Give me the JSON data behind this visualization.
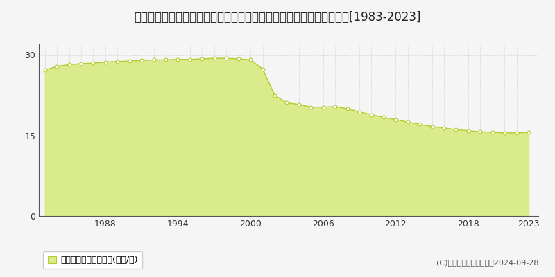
{
  "title": "新潟県上越市西城町３丁目字東二ノ辻１３番７　基準地価　地価推移[1983-2023]",
  "years": [
    1983,
    1984,
    1985,
    1986,
    1987,
    1988,
    1989,
    1990,
    1991,
    1992,
    1993,
    1994,
    1995,
    1996,
    1997,
    1998,
    1999,
    2000,
    2001,
    2002,
    2003,
    2004,
    2005,
    2006,
    2007,
    2008,
    2009,
    2010,
    2011,
    2012,
    2013,
    2014,
    2015,
    2016,
    2017,
    2018,
    2019,
    2020,
    2021,
    2022,
    2023
  ],
  "values": [
    27.2,
    27.9,
    28.2,
    28.4,
    28.5,
    28.7,
    28.8,
    28.9,
    29.0,
    29.1,
    29.1,
    29.2,
    29.2,
    29.3,
    29.4,
    29.4,
    29.3,
    29.1,
    27.4,
    22.5,
    21.1,
    20.8,
    20.3,
    20.3,
    20.4,
    20.0,
    19.4,
    18.9,
    18.4,
    18.0,
    17.5,
    17.1,
    16.7,
    16.4,
    16.1,
    15.9,
    15.7,
    15.6,
    15.5,
    15.5,
    15.6
  ],
  "fill_color": "#d9eb8a",
  "line_color": "#b5cc2e",
  "marker_color": "#ffffff",
  "marker_edge_color": "#b5cc2e",
  "grid_color": "#aaaaaa",
  "bg_color": "#f5f5f5",
  "plot_bg_color": "#f5f5f5",
  "yticks": [
    0,
    15,
    30
  ],
  "ylim": [
    0,
    32
  ],
  "xlim": [
    1982.5,
    2023.8
  ],
  "xticks": [
    1988,
    1994,
    2000,
    2006,
    2012,
    2018,
    2023
  ],
  "legend_label": "基準地価　平均坤単価(万円/坤)",
  "copyright_text": "(C)土地価格ドットコム　2024-09-28",
  "title_fontsize": 12,
  "legend_fontsize": 9,
  "copyright_fontsize": 8,
  "tick_fontsize": 9
}
